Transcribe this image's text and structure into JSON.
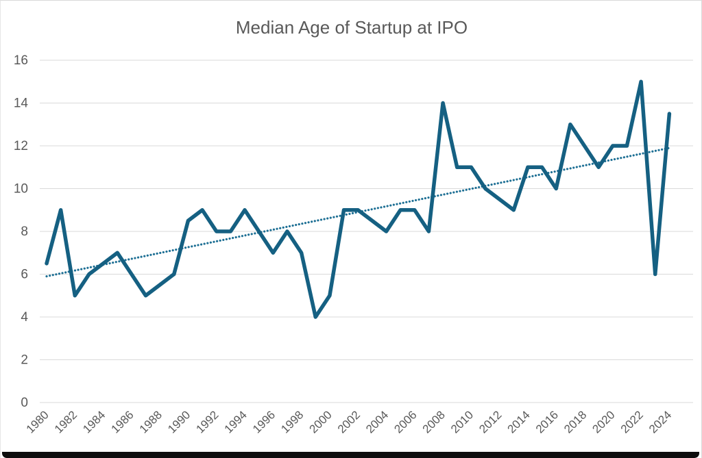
{
  "page": {
    "background": "#ffffff",
    "bottom_bar_color": "#0d0d0d"
  },
  "chart_data": {
    "type": "line",
    "title": "Median Age of Startup at IPO",
    "xlabel": "",
    "ylabel": "",
    "ylim": [
      0,
      16
    ],
    "ytick_step": 2,
    "xtick_every": 2,
    "grid": "horizontal-only",
    "legend": "none",
    "x": [
      1980,
      1981,
      1982,
      1983,
      1984,
      1985,
      1986,
      1987,
      1988,
      1989,
      1990,
      1991,
      1992,
      1993,
      1994,
      1995,
      1996,
      1997,
      1998,
      1999,
      2000,
      2001,
      2002,
      2003,
      2004,
      2005,
      2006,
      2007,
      2008,
      2009,
      2010,
      2011,
      2012,
      2013,
      2014,
      2015,
      2016,
      2017,
      2018,
      2019,
      2020,
      2021,
      2022,
      2023,
      2024
    ],
    "series": [
      {
        "name": "median-age-at-ipo",
        "type": "line",
        "values": [
          6.5,
          9,
          5,
          6,
          6.5,
          7,
          6,
          5,
          5.5,
          6,
          8.5,
          9,
          8,
          8,
          9,
          8,
          7,
          8,
          7,
          4,
          5,
          9,
          9,
          8.5,
          8,
          9,
          9,
          8,
          14,
          11,
          11,
          10,
          9.5,
          9,
          11,
          11,
          10,
          13,
          12,
          11,
          12,
          12,
          15,
          6,
          13.5
        ]
      },
      {
        "name": "linear-trend",
        "type": "trendline",
        "style": "dotted",
        "start_value": 5.9,
        "end_value": 11.9
      }
    ],
    "colors": {
      "series": "#156082",
      "trend": "#1d6f94",
      "grid": "#d9d9d9",
      "text": "#595959",
      "title": "#595959"
    }
  }
}
